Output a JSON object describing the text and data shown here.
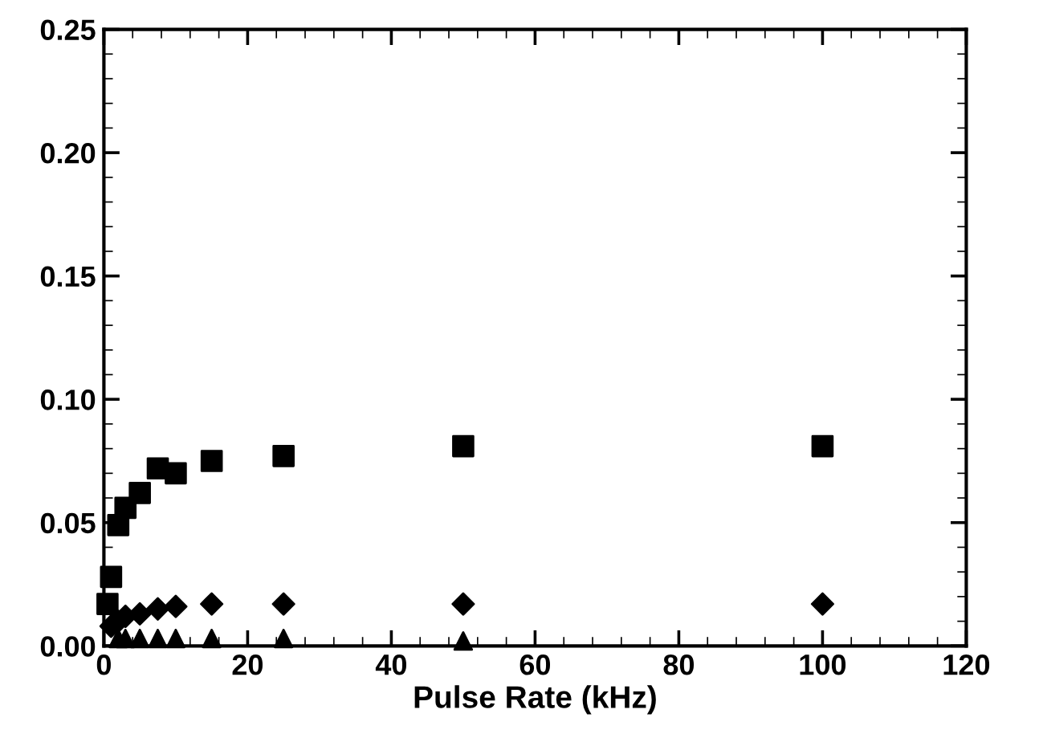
{
  "chart_data": {
    "type": "scatter",
    "xlabel": "Pulse Rate (kHz)",
    "xlim": [
      0,
      120
    ],
    "xticks": [
      0,
      20,
      40,
      60,
      80,
      100,
      120
    ],
    "ylim": [
      0,
      0.25
    ],
    "yticks": [
      {
        "value": 0,
        "label": "0.00"
      },
      {
        "value": 0.05,
        "label": "0.05"
      },
      {
        "value": 0.1,
        "label": "0.10"
      },
      {
        "value": 0.15,
        "label": "0.15"
      },
      {
        "value": 0.2,
        "label": "0.20"
      },
      {
        "value": 0.25,
        "label": "0.25"
      }
    ],
    "grid": false,
    "legend": false,
    "series": [
      {
        "color": "#000000",
        "marker": "square",
        "x": [
          0.5,
          1,
          2,
          3,
          5,
          7.5,
          10,
          15,
          25,
          50,
          100
        ],
        "values": [
          0.017,
          0.028,
          0.049,
          0.056,
          0.062,
          0.072,
          0.07,
          0.075,
          0.077,
          0.081,
          0.081
        ]
      },
      {
        "color": "#000000",
        "marker": "diamond",
        "x": [
          1,
          2,
          3,
          5,
          7.5,
          10,
          15,
          25,
          50,
          100
        ],
        "values": [
          0.008,
          0.01,
          0.012,
          0.013,
          0.015,
          0.016,
          0.017,
          0.017,
          0.017,
          0.017
        ]
      },
      {
        "color": "#000000",
        "marker": "triangle",
        "x": [
          2,
          3,
          5,
          7.5,
          10,
          15,
          25,
          50
        ],
        "values": [
          0.003,
          0.003,
          0.003,
          0.003,
          0.003,
          0.003,
          0.003,
          0.002
        ]
      }
    ]
  }
}
